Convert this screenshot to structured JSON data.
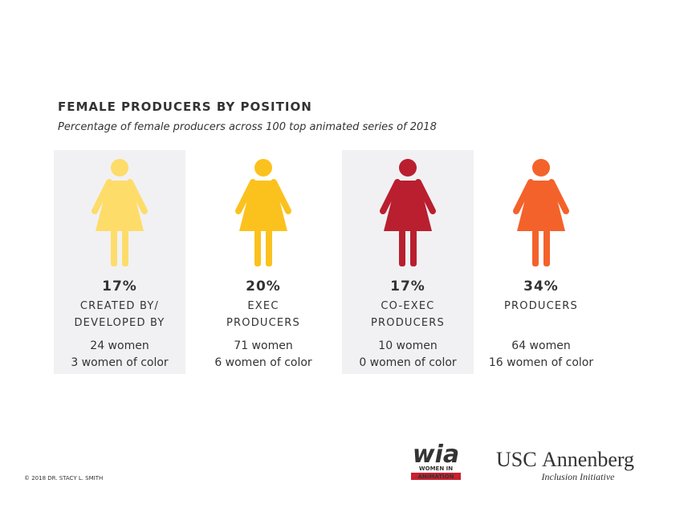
{
  "header": {
    "title": "FEMALE PRODUCERS BY POSITION",
    "subtitle": "Percentage of female producers across 100 top animated series of 2018"
  },
  "items": [
    {
      "percent": "17%",
      "label": [
        "CREATED BY/",
        "DEVELOPED BY"
      ],
      "women": "24 women",
      "women_of_color": "3 women of color",
      "color": "#fddc6a",
      "shaded": true
    },
    {
      "percent": "20%",
      "label": [
        "EXEC",
        "PRODUCERS"
      ],
      "women": "71 women",
      "women_of_color": "6 women of color",
      "color": "#fbc21e",
      "shaded": false
    },
    {
      "percent": "17%",
      "label": [
        "CO-EXEC",
        "PRODUCERS"
      ],
      "women": "10 women",
      "women_of_color": "0 women of color",
      "color": "#b91f2f",
      "shaded": true
    },
    {
      "percent": "34%",
      "label": [
        "PRODUCERS"
      ],
      "women": "64 women",
      "women_of_color": "16 women of color",
      "color": "#f4622b",
      "shaded": false
    }
  ],
  "footer": {
    "copyright": "© 2018 DR. STACY L. SMITH",
    "wia_logo": "wia",
    "wia_sub": [
      "WOMEN IN",
      "ANIMATION"
    ],
    "usc_logo": [
      "USC",
      "Annenberg"
    ],
    "usc_sub": "Inclusion Initiative"
  }
}
